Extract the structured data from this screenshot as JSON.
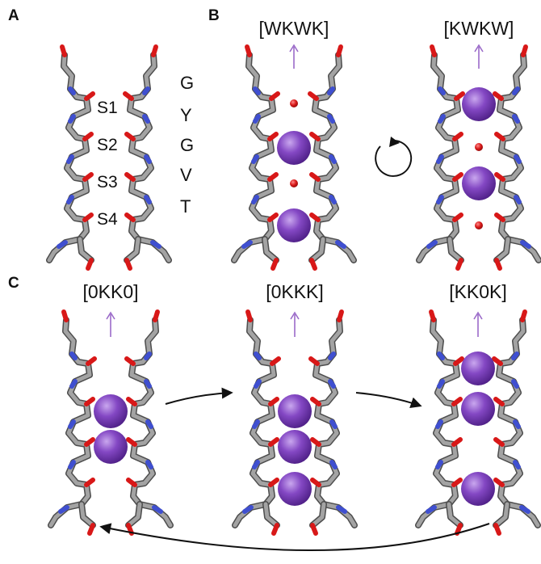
{
  "panels": {
    "a": {
      "label": "A",
      "sites": [
        "S1",
        "S2",
        "S3",
        "S4"
      ],
      "residues": [
        "G",
        "Y",
        "G",
        "V",
        "T"
      ]
    },
    "b": {
      "label": "B",
      "state_left": "[WKWK]",
      "state_right": "[KWKW]"
    },
    "c": {
      "label": "C",
      "state_1": "[0KK0]",
      "state_2": "[0KKK]",
      "state_3": "[KK0K]"
    }
  },
  "colors": {
    "backbone": "#8f8f8f",
    "backbone_edge": "#5c5c5c",
    "oxygen": "#d81818",
    "nitrogen": "#3f4fd0",
    "potassium": "#7b3fb5",
    "water": "#d81818",
    "arrow": "#9b6bc9",
    "flow_arrow": "#111111"
  },
  "icons": {
    "rotation": "rotation-cycle-icon"
  }
}
